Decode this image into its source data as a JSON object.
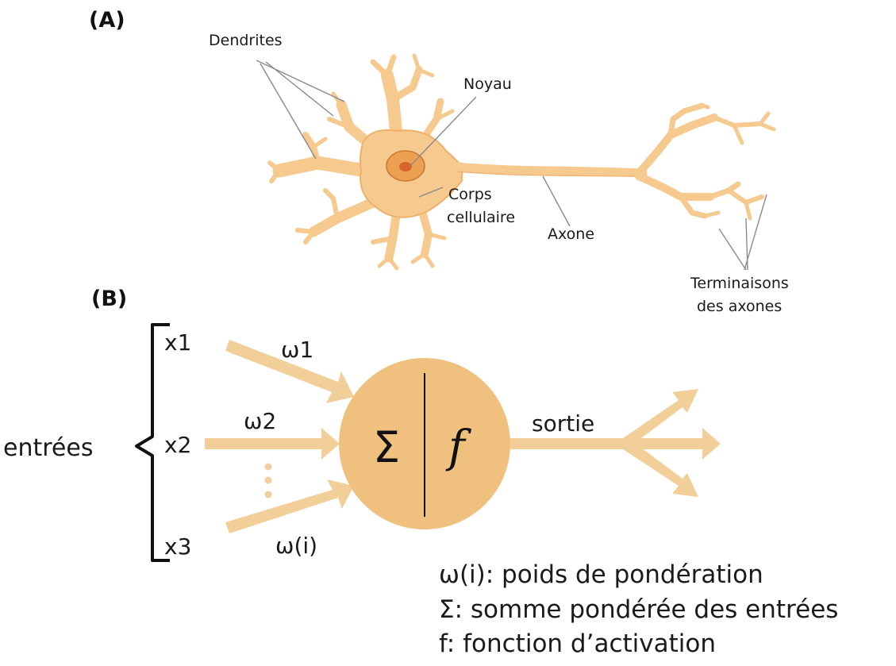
{
  "panel_a": {
    "label": "(A)",
    "labels": {
      "dendrites": "Dendrites",
      "nucleus": "Noyau",
      "cell_body_line1": "Corps",
      "cell_body_line2": "cellulaire",
      "axon": "Axone",
      "terminals_line1": "Terminaisons",
      "terminals_line2": "des axones"
    }
  },
  "panel_b": {
    "label": "(B)",
    "inputs_label": "entrées",
    "inputs": [
      "x1",
      "x2",
      "x3"
    ],
    "weights": [
      "ω1",
      "ω2",
      "ω(i)"
    ],
    "sum_symbol": "Σ",
    "activation_symbol": "f",
    "output_label": "sortie"
  },
  "legend": [
    "ω(i): poids de pondération",
    "Σ: somme pondérée des entrées",
    "f: fonction d’activation"
  ],
  "colors": {
    "neuron_fill": "#f6c98e",
    "neuron_outline": "#e9a95a",
    "nucleus_outer": "#eba052",
    "nucleus_inner": "#d9632a",
    "arrow": "#f2cf98",
    "circle": "#f0c07e",
    "leader_line": "#8a8a8a"
  }
}
